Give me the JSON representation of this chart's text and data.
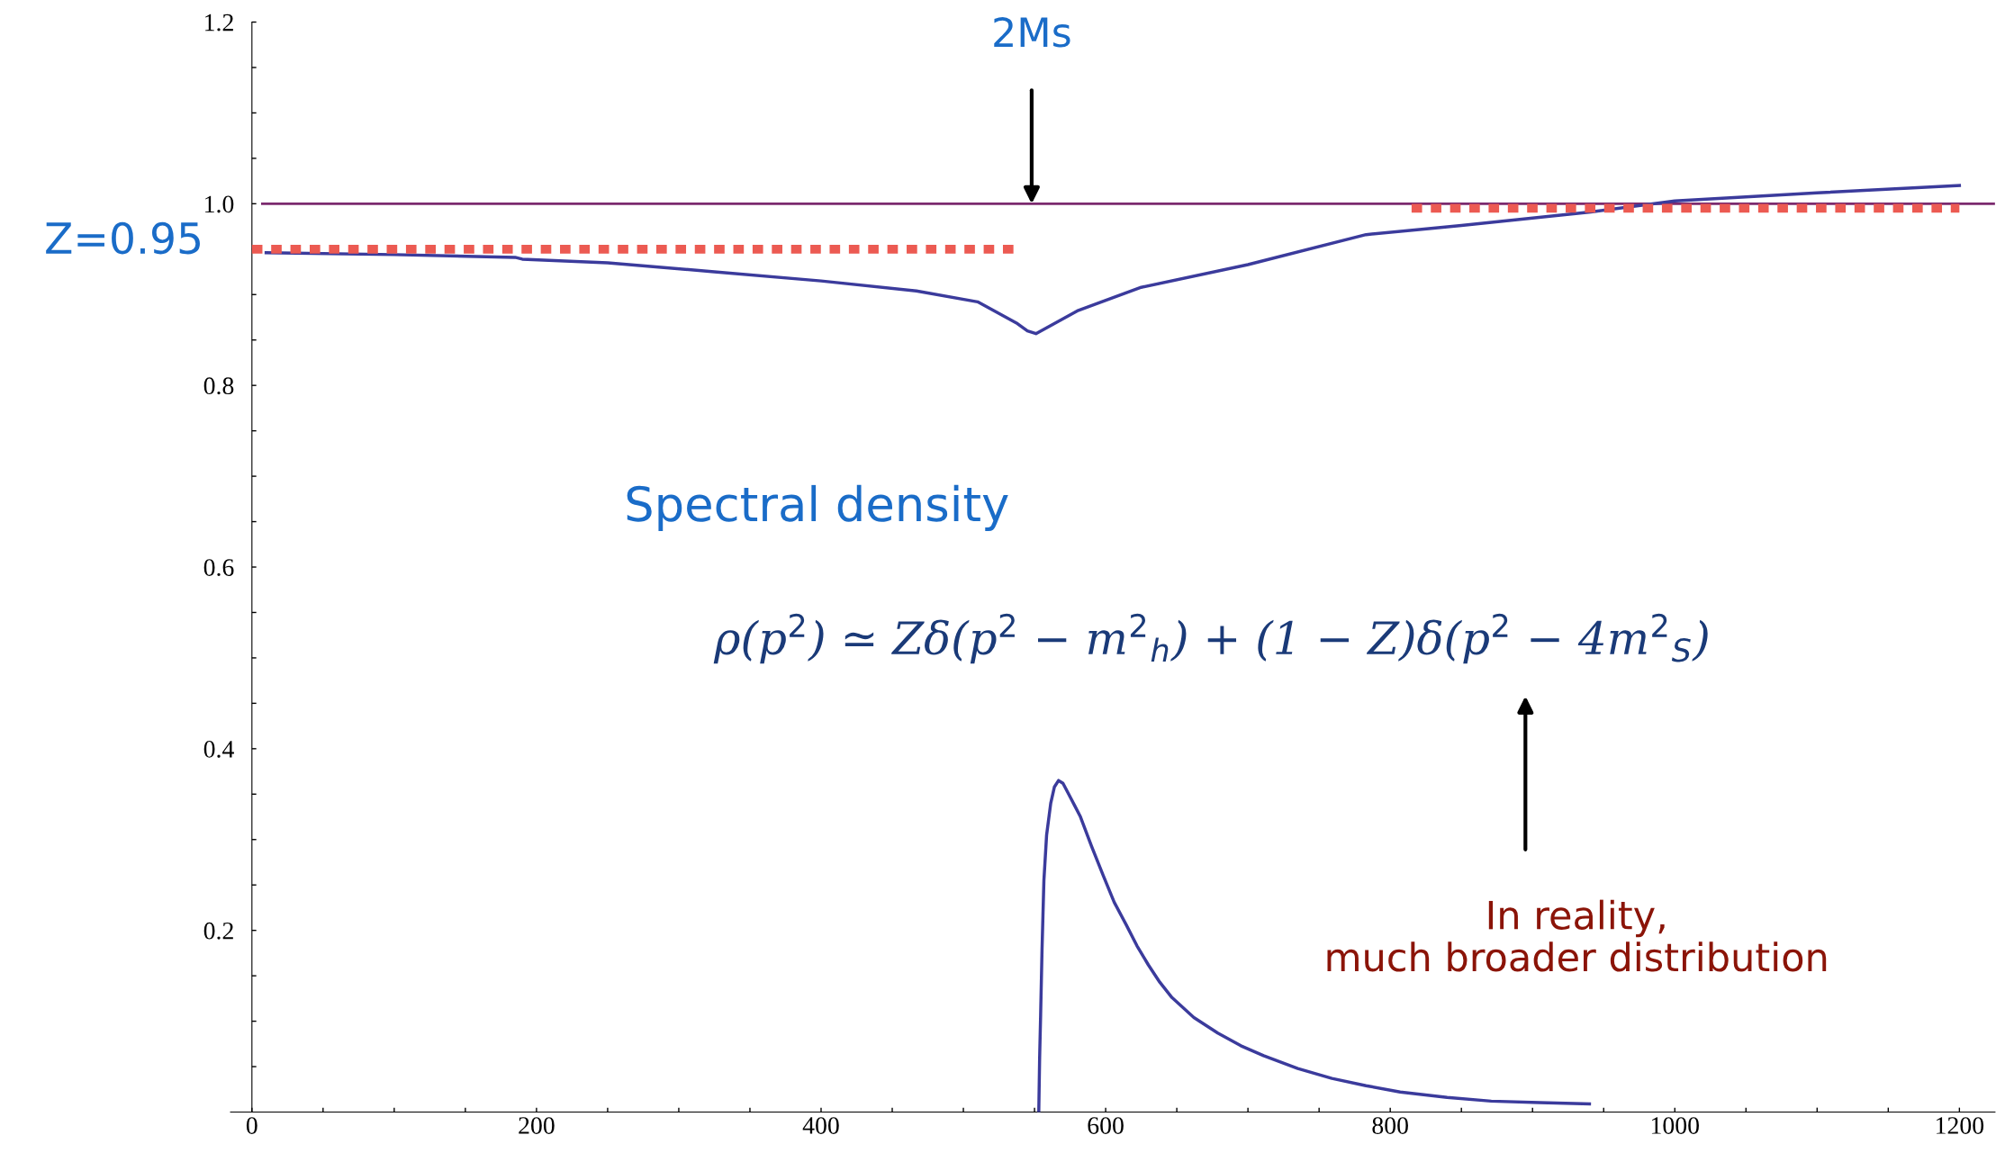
{
  "chart_data": {
    "type": "line",
    "xlim": [
      -15,
      1225
    ],
    "ylim": [
      0,
      1.2
    ],
    "xticks": [
      0,
      {
        "value": 50,
        "label": null
      },
      {
        "value": 100,
        "label": null
      },
      {
        "value": 150,
        "label": null
      },
      200,
      {
        "value": 250,
        "label": null
      },
      {
        "value": 300,
        "label": null
      },
      {
        "value": 350,
        "label": null
      },
      400,
      {
        "value": 450,
        "label": null
      },
      {
        "value": 500,
        "label": null
      },
      {
        "value": 550,
        "label": null
      },
      600,
      {
        "value": 650,
        "label": null
      },
      {
        "value": 700,
        "label": null
      },
      {
        "value": 750,
        "label": null
      },
      800,
      {
        "value": 850,
        "label": null
      },
      {
        "value": 900,
        "label": null
      },
      {
        "value": 950,
        "label": null
      },
      1000,
      {
        "value": 1050,
        "label": null
      },
      {
        "value": 1100,
        "label": null
      },
      {
        "value": 1150,
        "label": null
      },
      1200
    ],
    "yticks": [
      {
        "value": 0.05,
        "label": null
      },
      {
        "value": 0.1,
        "label": null
      },
      {
        "value": 0.15,
        "label": null
      },
      0.2,
      {
        "value": 0.25,
        "label": null
      },
      {
        "value": 0.3,
        "label": null
      },
      {
        "value": 0.35,
        "label": null
      },
      0.4,
      {
        "value": 0.45,
        "label": null
      },
      {
        "value": 0.5,
        "label": null
      },
      {
        "value": 0.55,
        "label": null
      },
      0.6,
      {
        "value": 0.65,
        "label": null
      },
      {
        "value": 0.7,
        "label": null
      },
      {
        "value": 0.75,
        "label": null
      },
      0.8,
      {
        "value": 0.85,
        "label": null
      },
      {
        "value": 0.9,
        "label": null
      },
      {
        "value": 0.95,
        "label": null
      },
      {
        "value": 1.0,
        "label": "1.0"
      },
      {
        "value": 1.05,
        "label": null
      },
      {
        "value": 1.1,
        "label": null
      },
      {
        "value": 1.15,
        "label": null
      },
      1.2
    ],
    "grid": false,
    "legend": false,
    "series": [
      {
        "color": "#3b3b9c",
        "line_style": "solid",
        "x": [
          10,
          100,
          185,
          190,
          250,
          325,
          400,
          467,
          510,
          538,
          545,
          551,
          580,
          625,
          700,
          783,
          850,
          941,
          1000,
          1100,
          1200
        ],
        "values": [
          0.946,
          0.944,
          0.941,
          0.939,
          0.935,
          0.925,
          0.915,
          0.904,
          0.892,
          0.868,
          0.86,
          0.857,
          0.882,
          0.908,
          0.933,
          0.966,
          0.976,
          0.991,
          1.003,
          1.012,
          1.02
        ]
      },
      {
        "color": "#3b3b9c",
        "line_style": "solid",
        "x": [
          553,
          553.6,
          554.3,
          555.3,
          556.6,
          558.5,
          561.4,
          564,
          566.9,
          570,
          574,
          578,
          582.3,
          590,
          598.4,
          606,
          614.5,
          622,
          630,
          638,
          646.6,
          662,
          678.8,
          695,
          711,
          735,
          759,
          783,
          807,
          840,
          871,
          905,
          940
        ],
        "values": [
          0,
          0.06,
          0.107,
          0.18,
          0.255,
          0.305,
          0.34,
          0.358,
          0.365,
          0.362,
          0.35,
          0.338,
          0.325,
          0.293,
          0.26,
          0.231,
          0.206,
          0.183,
          0.162,
          0.143,
          0.126,
          0.104,
          0.087,
          0.073,
          0.062,
          0.048,
          0.037,
          0.029,
          0.022,
          0.016,
          0.012,
          0.0105,
          0.009
        ]
      },
      {
        "color": "#ec5a52",
        "line_style": "dashed",
        "x": [
          0,
          538
        ],
        "values": [
          0.95,
          0.95
        ]
      },
      {
        "color": "#ec5a52",
        "line_style": "dashed",
        "x": [
          815,
          1200
        ],
        "values": [
          0.995,
          0.995
        ]
      }
    ],
    "ref_lines": [
      {
        "axis": "y",
        "value": 1.0,
        "color": "#7b2a6e",
        "line_style": "solid"
      }
    ],
    "annotations": [
      {
        "text": "2Ms",
        "x": 548,
        "y": 1.0
      },
      "Z=0.95",
      "Spectral density",
      "ρ(p$^{2}$) ≃ Zδ(p$^{2}$ − m$^{2}$$_{h}$) + (1 − Z)δ(p$^{2}$ − 4m$^{2}$$_{S}$)",
      "In reality,\nmuch broader distribution"
    ]
  }
}
